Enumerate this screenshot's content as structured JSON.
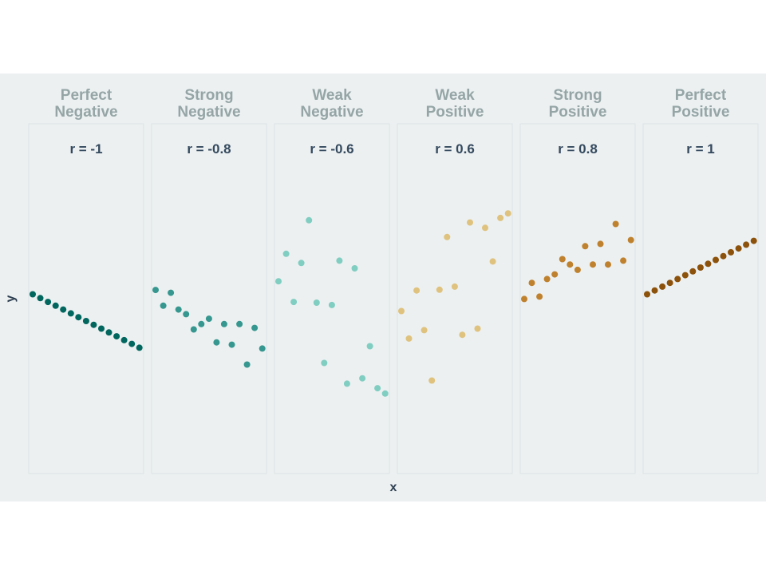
{
  "chart_data": {
    "type": "scatter",
    "xlabel": "x",
    "ylabel": "y",
    "grid": false,
    "legend": "none",
    "background_color": "#ecf0f1",
    "panel_border_color": "#dde3e5",
    "facet_title_color": "#95a5a6",
    "label_color": "#34495e",
    "panels": [
      {
        "title_lines": [
          "Perfect",
          "Negative"
        ],
        "r_label": "r = -1",
        "color": "#01665e",
        "x": [
          0,
          1,
          2,
          3,
          4,
          5,
          6,
          7,
          8,
          9,
          10,
          11,
          12,
          13,
          14
        ],
        "y": [
          0,
          -0.5,
          -1,
          -1.5,
          -2,
          -2.5,
          -3,
          -3.5,
          -4,
          -4.5,
          -5,
          -5.5,
          -6,
          -6.5,
          -7
        ]
      },
      {
        "title_lines": [
          "Strong",
          "Negative"
        ],
        "r_label": "r = -0.8",
        "color": "#35978f",
        "x": [
          0,
          1,
          2,
          3,
          4,
          5,
          6,
          7,
          8,
          9,
          10,
          11,
          12,
          13,
          14
        ],
        "y": [
          0.57,
          -1.5,
          0.2,
          -2.0,
          -2.6,
          -4.6,
          -3.9,
          -3.2,
          -6.3,
          -3.9,
          -6.6,
          -3.9,
          -9.2,
          -4.4,
          -7.1
        ]
      },
      {
        "title_lines": [
          "Weak",
          "Negative"
        ],
        "r_label": "r = -0.6",
        "color": "#80cdc1",
        "x": [
          0,
          1,
          2,
          3,
          4,
          5,
          6,
          7,
          8,
          9,
          10,
          11,
          12,
          13,
          14
        ],
        "y": [
          1.7,
          5.3,
          -1.0,
          4.1,
          9.7,
          -1.1,
          -9.0,
          -1.4,
          4.4,
          -11.7,
          3.4,
          -11.0,
          -6.8,
          -12.3,
          -13.0
        ]
      },
      {
        "title_lines": [
          "Weak",
          "Positive"
        ],
        "r_label": "r = 0.6",
        "color": "#dfc27d",
        "x": [
          0,
          1,
          2,
          3,
          4,
          5,
          6,
          7,
          8,
          9,
          10,
          11,
          12,
          13,
          14
        ],
        "y": [
          -2.2,
          -5.8,
          0.5,
          -4.7,
          -11.3,
          0.6,
          7.5,
          1.0,
          -5.3,
          9.4,
          -4.5,
          8.7,
          4.3,
          10.0,
          10.6
        ]
      },
      {
        "title_lines": [
          "Strong",
          "Positive"
        ],
        "r_label": "r = 0.8",
        "color": "#bf812d",
        "x": [
          0,
          1,
          2,
          3,
          4,
          5,
          6,
          7,
          8,
          9,
          10,
          11,
          12,
          13,
          14
        ],
        "y": [
          -0.62,
          1.5,
          -0.3,
          2.0,
          2.6,
          4.6,
          3.9,
          3.2,
          6.3,
          3.9,
          6.6,
          3.9,
          9.2,
          4.4,
          7.1
        ]
      },
      {
        "title_lines": [
          "Perfect",
          "Positive"
        ],
        "r_label": "r = 1",
        "color": "#8c510a",
        "x": [
          0,
          1,
          2,
          3,
          4,
          5,
          6,
          7,
          8,
          9,
          10,
          11,
          12,
          13,
          14
        ],
        "y": [
          0,
          0.5,
          1,
          1.5,
          2,
          2.5,
          3,
          3.5,
          4,
          4.5,
          5,
          5.5,
          6,
          6.5,
          7
        ]
      }
    ]
  }
}
